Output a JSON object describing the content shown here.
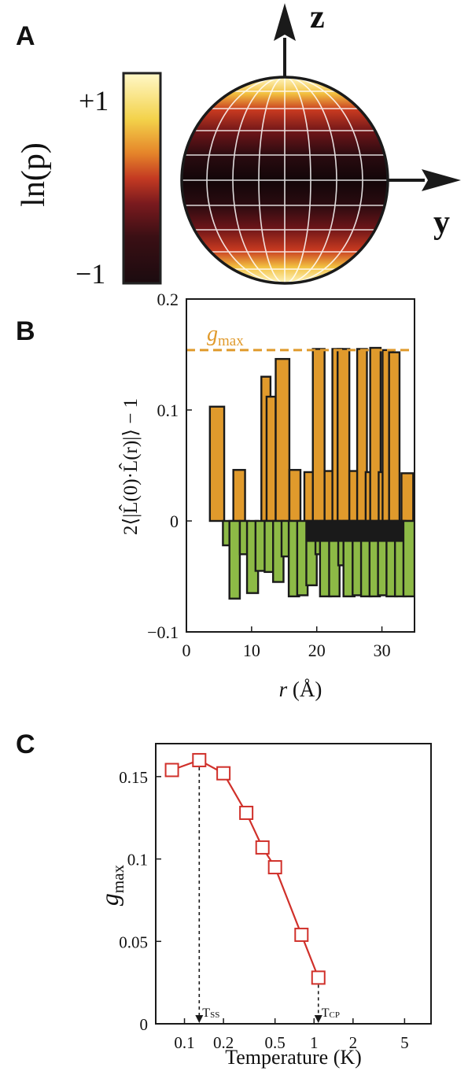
{
  "panel_labels": [
    "A",
    "B",
    "C"
  ],
  "panel_a": {
    "colorbar_label": "ln(p)",
    "colorbar_max_label": "+1",
    "colorbar_min_label": "−1",
    "axis_z": "z",
    "axis_y": "y",
    "colormap": [
      "#1b0b0f",
      "#3a0f14",
      "#7a1a1e",
      "#c43a22",
      "#e5852a",
      "#f3d24a",
      "#fff8c8"
    ]
  },
  "chart_data": [
    {
      "type": "bar",
      "panel": "B",
      "xlabel_var": "r",
      "xlabel_unit": " (Å)",
      "ylabel": "2⟨|L̂(0)·L̂(r)|⟩ − 1",
      "xlim": [
        0,
        35
      ],
      "ylim": [
        -0.1,
        0.2
      ],
      "xticks": [
        "0",
        "10",
        "20",
        "30"
      ],
      "yticks": [
        "0.2",
        "0.1",
        "0",
        "−0.1"
      ],
      "reference_line": {
        "label_main": "g",
        "label_sub": "max",
        "value": 0.154,
        "color": "#e09a2c"
      },
      "series": [
        {
          "color": "#e09a2c",
          "bars": [
            {
              "x": 3.6,
              "w": 2.2,
              "y": 0.103
            },
            {
              "x": 7.2,
              "w": 1.8,
              "y": 0.046
            },
            {
              "x": 11.5,
              "w": 1.4,
              "y": 0.13
            },
            {
              "x": 12.3,
              "w": 1.4,
              "y": 0.112
            },
            {
              "x": 13.7,
              "w": 2.1,
              "y": 0.146
            },
            {
              "x": 15.8,
              "w": 1.7,
              "y": 0.046
            },
            {
              "x": 18.1,
              "w": 1.7,
              "y": 0.044
            },
            {
              "x": 19.4,
              "w": 1.8,
              "y": 0.155
            },
            {
              "x": 21.2,
              "w": 1.6,
              "y": 0.045
            },
            {
              "x": 22.4,
              "w": 1.5,
              "y": 0.155
            },
            {
              "x": 23.2,
              "w": 1.8,
              "y": 0.155
            },
            {
              "x": 25.0,
              "w": 1.6,
              "y": 0.045
            },
            {
              "x": 26.2,
              "w": 1.5,
              "y": 0.155
            },
            {
              "x": 27.5,
              "w": 1.7,
              "y": 0.044
            },
            {
              "x": 28.2,
              "w": 1.6,
              "y": 0.156
            },
            {
              "x": 29.5,
              "w": 1.5,
              "y": 0.044
            },
            {
              "x": 30.1,
              "w": 1.6,
              "y": 0.154
            },
            {
              "x": 31.1,
              "w": 1.6,
              "y": 0.152
            },
            {
              "x": 33.0,
              "w": 1.8,
              "y": 0.043
            }
          ]
        },
        {
          "color": "#8dba46",
          "bars": [
            {
              "x": 5.6,
              "w": 1.4,
              "y": -0.022
            },
            {
              "x": 6.6,
              "w": 1.6,
              "y": -0.07
            },
            {
              "x": 8.2,
              "w": 1.4,
              "y": -0.03
            },
            {
              "x": 9.3,
              "w": 1.7,
              "y": -0.065
            },
            {
              "x": 10.6,
              "w": 1.6,
              "y": -0.045
            },
            {
              "x": 12.0,
              "w": 1.6,
              "y": -0.046
            },
            {
              "x": 13.3,
              "w": 1.6,
              "y": -0.055
            },
            {
              "x": 14.6,
              "w": 1.5,
              "y": -0.032
            },
            {
              "x": 15.7,
              "w": 1.6,
              "y": -0.068
            },
            {
              "x": 17.0,
              "w": 1.6,
              "y": -0.067
            },
            {
              "x": 18.4,
              "w": 1.6,
              "y": -0.058
            },
            {
              "x": 19.8,
              "w": 1.4,
              "y": -0.03
            },
            {
              "x": 20.5,
              "w": 1.7,
              "y": -0.068
            },
            {
              "x": 21.9,
              "w": 1.6,
              "y": -0.068
            },
            {
              "x": 23.3,
              "w": 1.5,
              "y": -0.04
            },
            {
              "x": 24.1,
              "w": 1.7,
              "y": -0.068
            },
            {
              "x": 25.5,
              "w": 1.6,
              "y": -0.067
            },
            {
              "x": 26.8,
              "w": 1.6,
              "y": -0.068
            },
            {
              "x": 28.1,
              "w": 1.6,
              "y": -0.068
            },
            {
              "x": 29.4,
              "w": 1.6,
              "y": -0.067
            },
            {
              "x": 30.7,
              "w": 1.6,
              "y": -0.068
            },
            {
              "x": 32.0,
              "w": 1.6,
              "y": -0.068
            },
            {
              "x": 33.3,
              "w": 1.7,
              "y": -0.068
            }
          ]
        },
        {
          "color": "#1a1a1a",
          "bars": [
            {
              "x": 18.6,
              "w": 14.6,
              "y": -0.018
            }
          ]
        }
      ]
    },
    {
      "type": "line",
      "panel": "C",
      "xlabel": "Temperature (K)",
      "ylabel_main": "g",
      "ylabel_sub": "max",
      "xscale": "log",
      "xlim": [
        0.06,
        8
      ],
      "ylim": [
        0,
        0.17
      ],
      "xticks": [
        {
          "v": 0.1,
          "label": "0.1"
        },
        {
          "v": 0.2,
          "label": "0.2"
        },
        {
          "v": 0.5,
          "label": "0.5"
        },
        {
          "v": 1,
          "label": "1"
        },
        {
          "v": 2,
          "label": "2"
        },
        {
          "v": 5,
          "label": "5"
        }
      ],
      "yticks": [
        {
          "v": 0,
          "label": "0"
        },
        {
          "v": 0.05,
          "label": "0.05"
        },
        {
          "v": 0.1,
          "label": "0.1"
        },
        {
          "v": 0.15,
          "label": "0.15"
        }
      ],
      "color": "#d0302a",
      "x": [
        0.08,
        0.13,
        0.2,
        0.3,
        0.4,
        0.5,
        0.8,
        1.08
      ],
      "y": [
        0.154,
        0.16,
        0.152,
        0.128,
        0.107,
        0.095,
        0.054,
        0.028
      ],
      "markers": [
        {
          "x": 0.13,
          "y": 0.16,
          "label_main": "T",
          "label_sub": "SS"
        },
        {
          "x": 1.08,
          "y": 0.028,
          "label_main": "T",
          "label_sub": "CP"
        }
      ]
    }
  ]
}
